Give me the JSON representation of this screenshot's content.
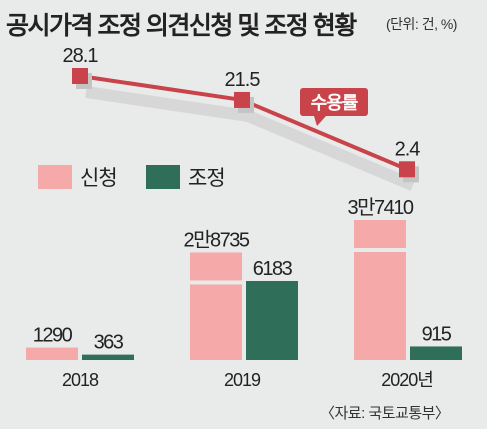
{
  "title": "공시가격 조정 의견신청 및 조정 현황",
  "unit": "(단위: 건, %)",
  "source": "〈자료: 국토교통부〉",
  "colors": {
    "apply": "#f6a9a9",
    "adjust": "#2f6e58",
    "line": "#c9434a",
    "background": "#e9eaea"
  },
  "chart_data": {
    "type": "bar",
    "categories": [
      "2018",
      "2019",
      "2020년"
    ],
    "series": [
      {
        "name": "신청",
        "values": [
          1290,
          28735,
          37410
        ],
        "labels": [
          "1290",
          "2만8735",
          "3만7410"
        ]
      },
      {
        "name": "조정",
        "values": [
          363,
          6183,
          915
        ],
        "labels": [
          "363",
          "6183",
          "915"
        ]
      }
    ],
    "line": {
      "name": "수용률",
      "values": [
        28.1,
        21.5,
        2.4
      ],
      "labels": [
        "28.1",
        "21.5",
        "2.4"
      ]
    },
    "legend": {
      "placement": "left",
      "entries": [
        "신청",
        "조정"
      ]
    }
  }
}
